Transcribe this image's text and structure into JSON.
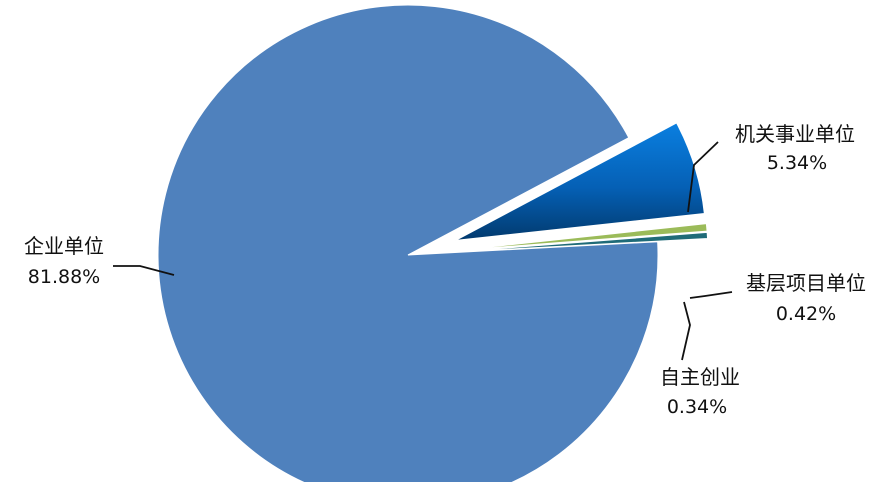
{
  "chart_data": {
    "type": "pie",
    "title": "",
    "legend": "none",
    "slices": [
      {
        "label": "企业单位",
        "value": 81.88,
        "value_label": "81.88%",
        "color": "#4f81bd",
        "exploded": false
      },
      {
        "label": "机关事业单位",
        "value": 5.34,
        "value_label": "5.34%",
        "color": "#0a62b8",
        "exploded": true
      },
      {
        "label": "基层项目单位",
        "value": 0.42,
        "value_label": "0.42%",
        "color": "#9bbb59",
        "exploded": true
      },
      {
        "label": "自主创业",
        "value": 0.34,
        "value_label": "0.34%",
        "color": "#1f6b78",
        "exploded": true
      }
    ]
  }
}
